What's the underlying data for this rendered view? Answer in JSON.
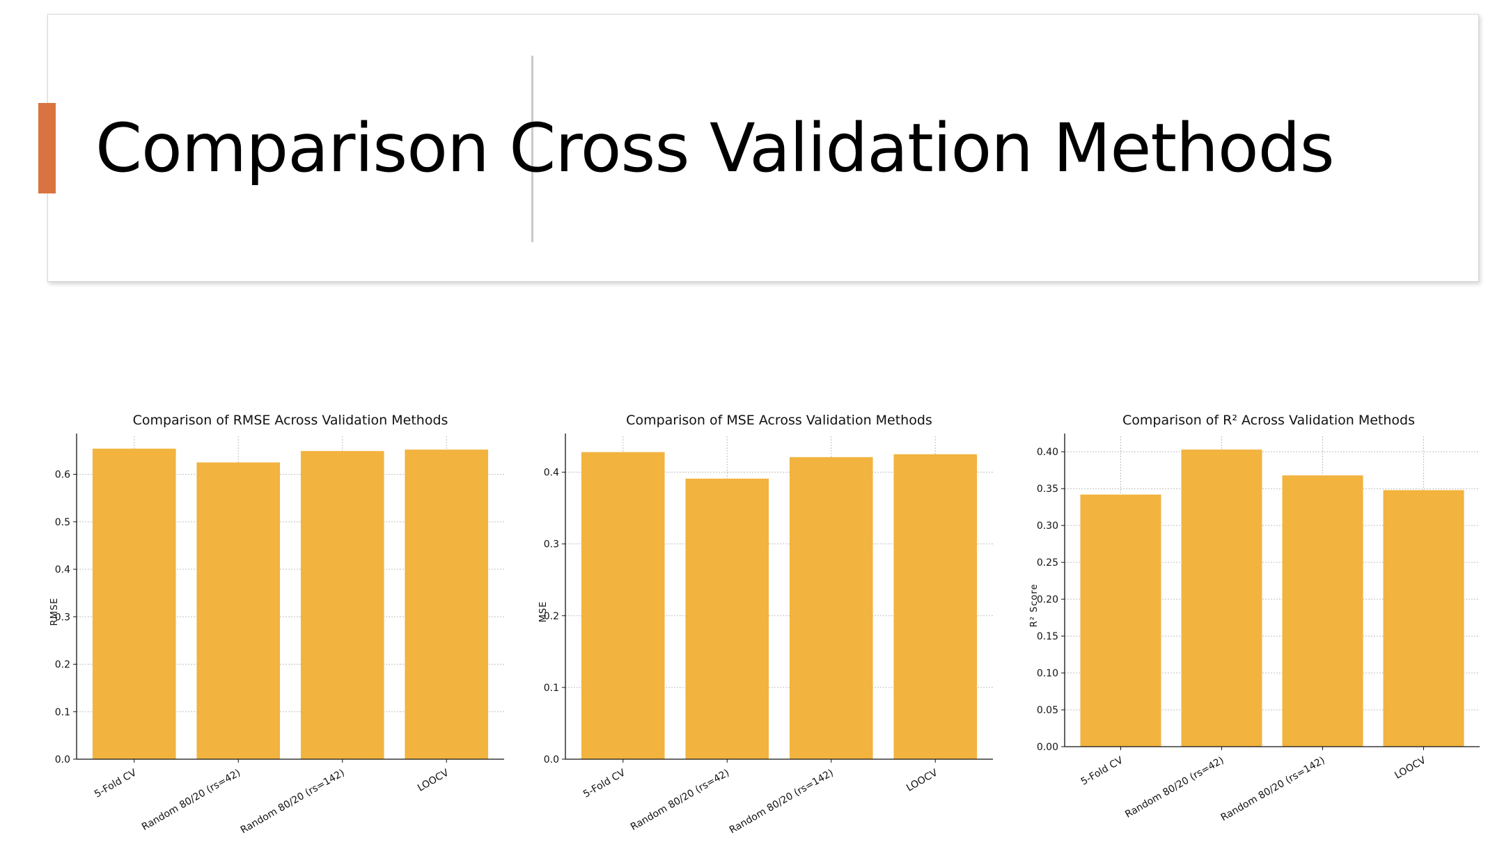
{
  "slide": {
    "title": "Comparison Cross Validation Methods",
    "accent_color": "#D9733F"
  },
  "bar_color": "#F2B33F",
  "chart_data": [
    {
      "type": "bar",
      "title": "Comparison of RMSE Across Validation Methods",
      "xlabel": "",
      "ylabel": "RMSE",
      "categories": [
        "5-Fold CV",
        "Random 80/20 (rs=42)",
        "Random 80/20 (rs=142)",
        "LOOCV"
      ],
      "values": [
        0.654,
        0.625,
        0.649,
        0.652
      ],
      "ylim": [
        0,
        0.68
      ],
      "yticks": [
        0.0,
        0.1,
        0.2,
        0.3,
        0.4,
        0.5,
        0.6
      ],
      "tick_decimals": 1,
      "grid": true
    },
    {
      "type": "bar",
      "title": "Comparison of MSE Across Validation Methods",
      "xlabel": "",
      "ylabel": "MSE",
      "categories": [
        "5-Fold CV",
        "Random 80/20 (rs=42)",
        "Random 80/20 (rs=142)",
        "LOOCV"
      ],
      "values": [
        0.428,
        0.391,
        0.421,
        0.425
      ],
      "ylim": [
        0,
        0.45
      ],
      "yticks": [
        0.0,
        0.1,
        0.2,
        0.3,
        0.4
      ],
      "tick_decimals": 1,
      "grid": true
    },
    {
      "type": "bar",
      "title": "Comparison of R² Across Validation Methods",
      "xlabel": "",
      "ylabel": "R² Score",
      "categories": [
        "5-Fold CV",
        "Random 80/20 (rs=42)",
        "Random 80/20 (rs=142)",
        "LOOCV"
      ],
      "values": [
        0.342,
        0.403,
        0.368,
        0.348
      ],
      "ylim": [
        0,
        0.421
      ],
      "yticks": [
        0.0,
        0.05,
        0.1,
        0.15,
        0.2,
        0.25,
        0.3,
        0.35,
        0.4
      ],
      "tick_decimals": 2,
      "grid": true
    }
  ]
}
